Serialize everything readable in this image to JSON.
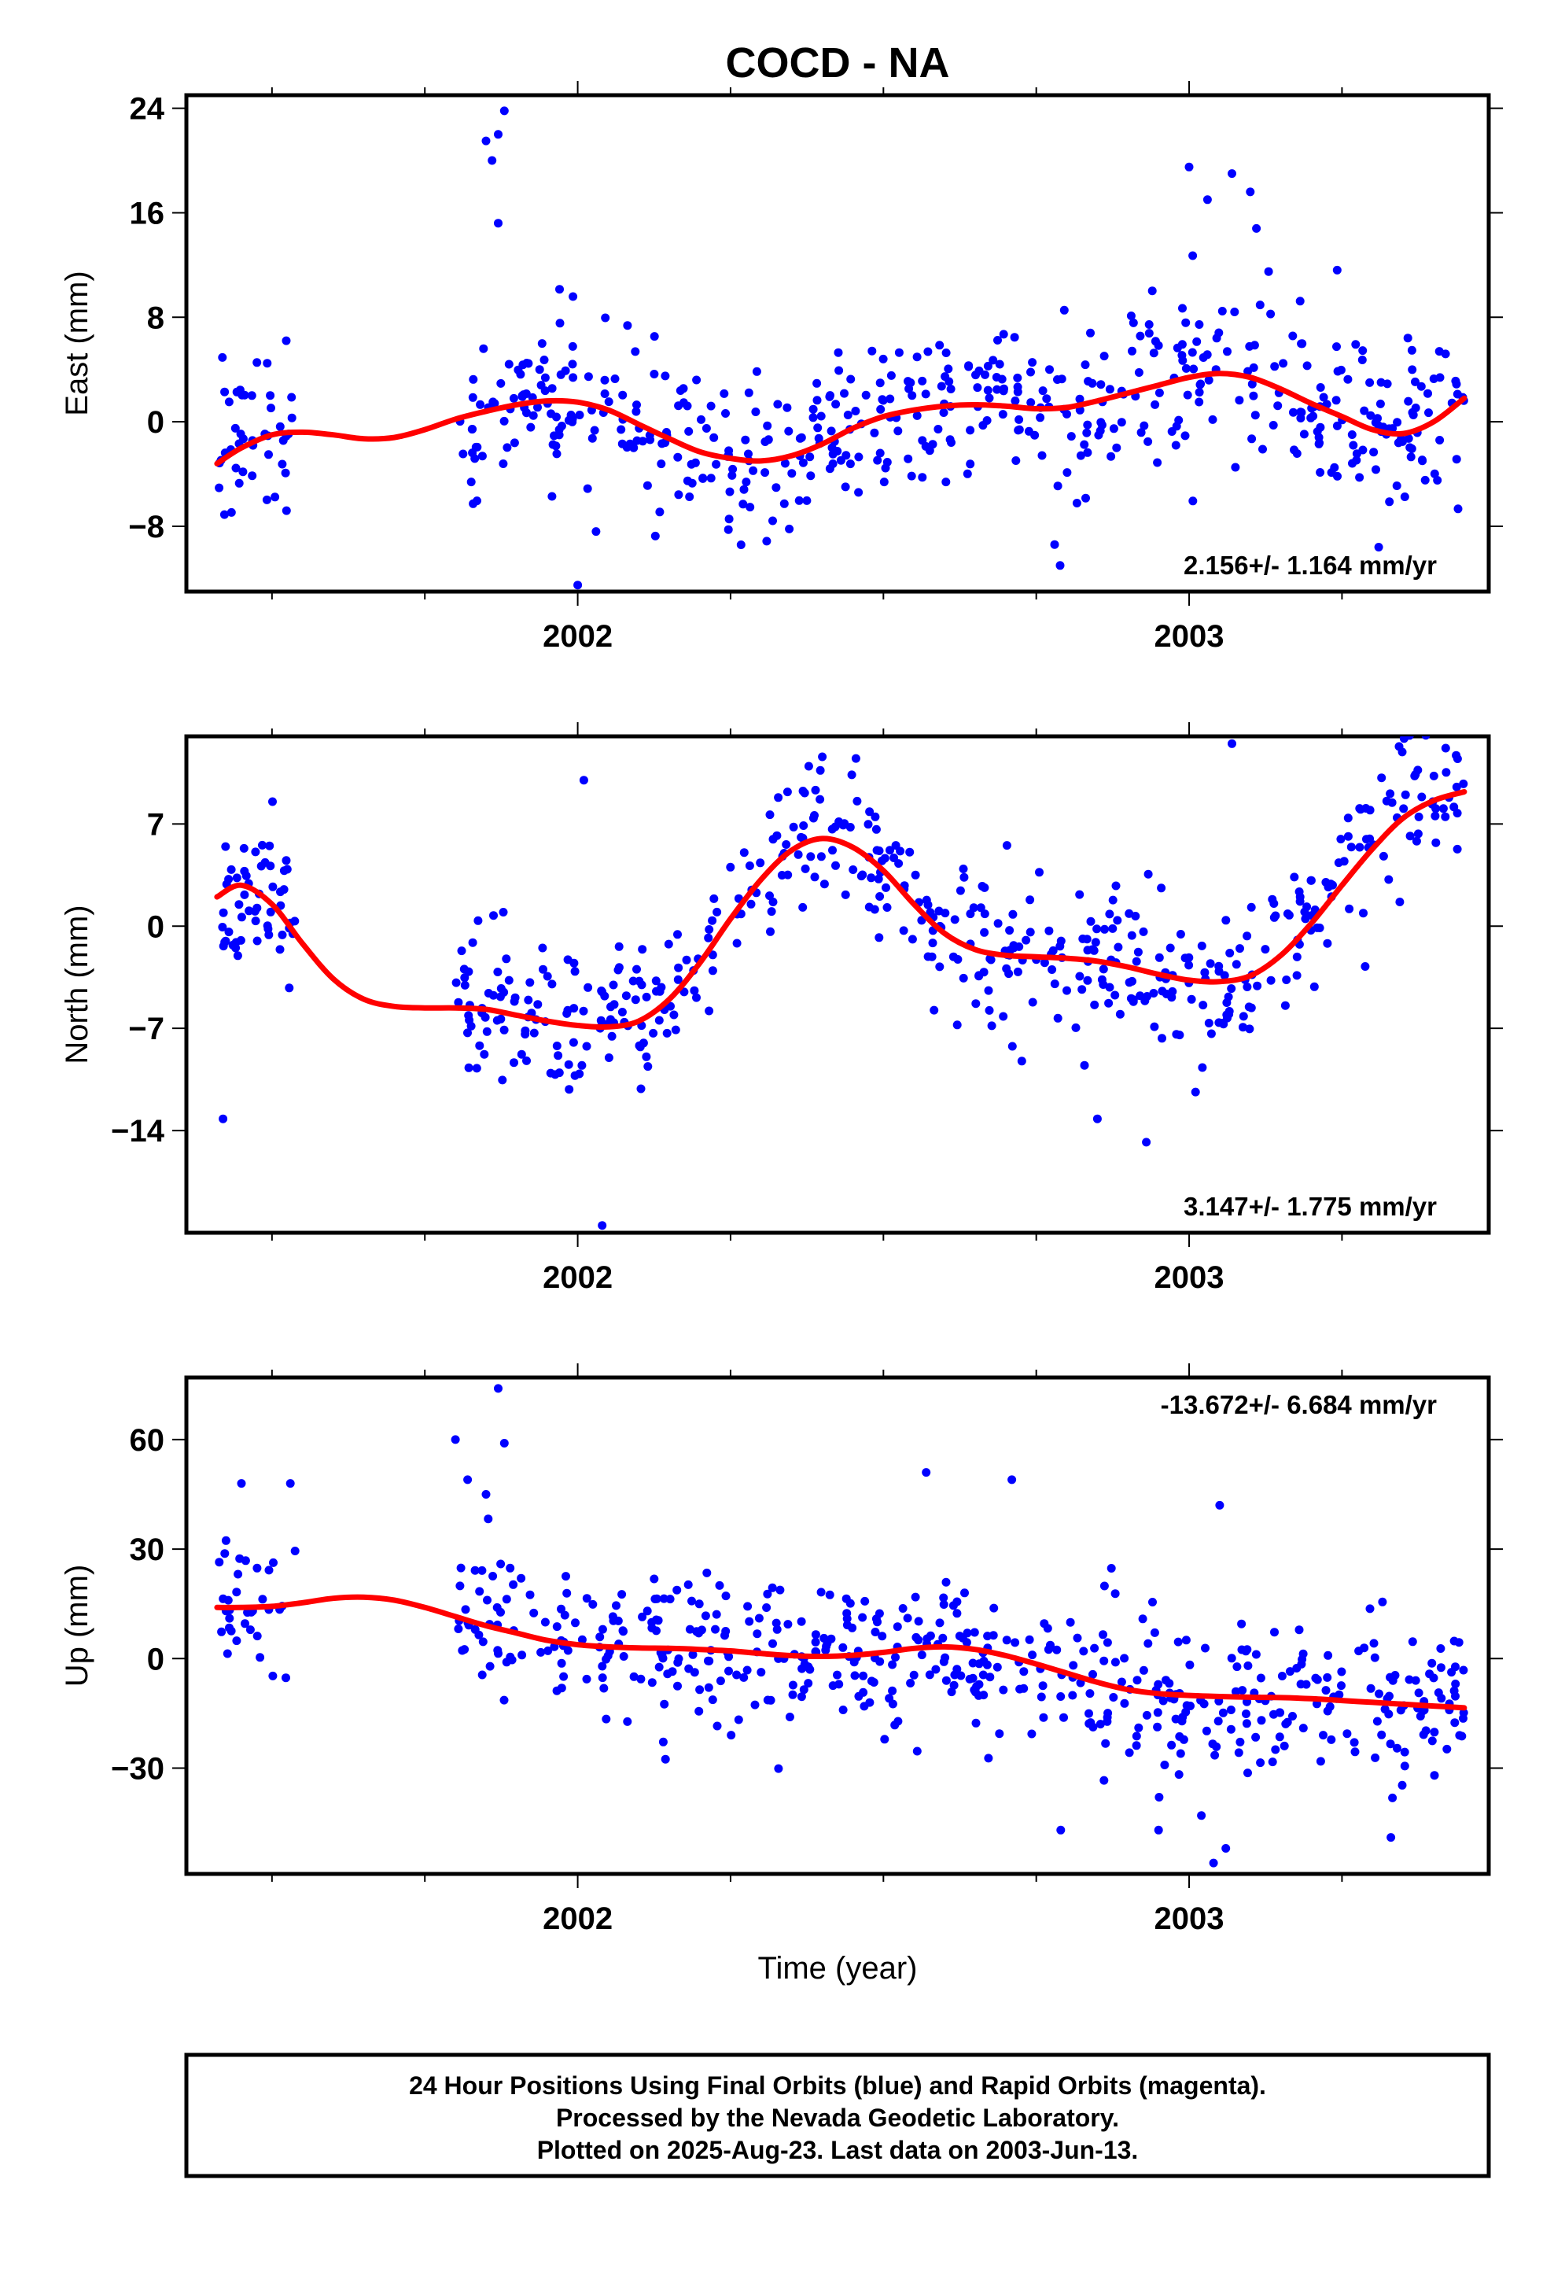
{
  "title": "COCD - NA",
  "xlabel": "Time (year)",
  "footer": {
    "line1": "24 Hour Positions Using Final Orbits (blue) and Rapid Orbits (magenta).",
    "line2": "Processed by the Nevada Geodetic Laboratory.",
    "line3": "Plotted on 2025-Aug-23. Last data on 2003-Jun-13."
  },
  "colors": {
    "points": "#0000ff",
    "fit": "#ff0000",
    "frame": "#000000"
  },
  "chart_data": [
    {
      "type": "scatter",
      "name": "east",
      "ylabel": "East (mm)",
      "rate": "2.156+/- 1.164 mm/yr",
      "rate_position": "bottom-right",
      "xlim": [
        2001.36,
        2003.49
      ],
      "ylim": [
        -13,
        25
      ],
      "yticks": [
        -8,
        0,
        8,
        16,
        24
      ],
      "xticks": [
        2002,
        2003
      ],
      "data_span": [
        2001.41,
        2003.45
      ],
      "gap": [
        2001.54,
        2001.8
      ],
      "model": {
        "trend": -0.4,
        "rate": 2.156,
        "amp": 1.7,
        "freq": 2.6,
        "phase": 0.2
      },
      "spread": 3.2,
      "n_points": 560,
      "seed": 11,
      "fit_x": [
        2001.41,
        2001.45,
        2001.5,
        2001.55,
        2001.6,
        2001.65,
        2001.7,
        2001.75,
        2001.8,
        2001.85,
        2001.9,
        2001.95,
        2002.0,
        2002.05,
        2002.1,
        2002.15,
        2002.2,
        2002.25,
        2002.3,
        2002.35,
        2002.4,
        2002.45,
        2002.5,
        2002.55,
        2002.6,
        2002.65,
        2002.7,
        2002.75,
        2002.8,
        2002.85,
        2002.9,
        2002.95,
        2003.0,
        2003.05,
        2003.1,
        2003.15,
        2003.2,
        2003.25,
        2003.3,
        2003.35,
        2003.4,
        2003.45
      ],
      "fit_y": [
        -3.2,
        -2.0,
        -1.0,
        -0.8,
        -1.0,
        -1.3,
        -1.2,
        -0.6,
        0.2,
        0.8,
        1.3,
        1.6,
        1.5,
        0.9,
        -0.2,
        -1.3,
        -2.3,
        -2.8,
        -3.0,
        -2.6,
        -1.7,
        -0.5,
        0.4,
        0.9,
        1.2,
        1.3,
        1.2,
        1.0,
        1.1,
        1.6,
        2.2,
        2.8,
        3.4,
        3.7,
        3.4,
        2.5,
        1.4,
        0.4,
        -0.6,
        -0.9,
        0.0,
        1.8
      ],
      "outliers": [
        [
          2001.85,
          21.5
        ],
        [
          2001.86,
          20.0
        ],
        [
          2001.87,
          22.0
        ],
        [
          2001.88,
          23.8
        ],
        [
          2001.87,
          15.2
        ],
        [
          2002.0,
          -12.5
        ],
        [
          2003.0,
          19.5
        ],
        [
          2003.03,
          17.0
        ],
        [
          2003.07,
          19.0
        ],
        [
          2003.1,
          17.6
        ],
        [
          2003.11,
          14.8
        ],
        [
          2003.13,
          11.5
        ],
        [
          2002.78,
          -9.4
        ],
        [
          2003.31,
          -9.6
        ],
        [
          2002.03,
          -8.4
        ]
      ]
    },
    {
      "type": "scatter",
      "name": "north",
      "ylabel": "North (mm)",
      "rate": "3.147+/- 1.775 mm/yr",
      "rate_position": "bottom-right",
      "xlim": [
        2001.36,
        2003.49
      ],
      "ylim": [
        -21,
        13
      ],
      "yticks": [
        -14,
        -7,
        0,
        7
      ],
      "xticks": [
        2002,
        2003
      ],
      "data_span": [
        2001.41,
        2003.45
      ],
      "gap": [
        2001.54,
        2001.8
      ],
      "spread": 2.6,
      "n_points": 560,
      "seed": 23,
      "fit_x": [
        2001.41,
        2001.45,
        2001.5,
        2001.55,
        2001.6,
        2001.65,
        2001.7,
        2001.75,
        2001.8,
        2001.85,
        2001.9,
        2001.95,
        2002.0,
        2002.05,
        2002.1,
        2002.15,
        2002.2,
        2002.25,
        2002.3,
        2002.35,
        2002.4,
        2002.45,
        2002.5,
        2002.55,
        2002.6,
        2002.65,
        2002.7,
        2002.75,
        2002.8,
        2002.85,
        2002.9,
        2002.95,
        2003.0,
        2003.05,
        2003.1,
        2003.15,
        2003.2,
        2003.25,
        2003.3,
        2003.35,
        2003.4,
        2003.45
      ],
      "fit_y": [
        2.0,
        2.8,
        1.5,
        -1.2,
        -3.6,
        -5.0,
        -5.5,
        -5.6,
        -5.6,
        -5.7,
        -6.1,
        -6.5,
        -6.8,
        -6.9,
        -6.5,
        -5.0,
        -2.5,
        0.5,
        3.2,
        5.2,
        6.0,
        5.4,
        3.8,
        1.5,
        -0.5,
        -1.6,
        -2.0,
        -2.1,
        -2.2,
        -2.4,
        -2.8,
        -3.3,
        -3.7,
        -3.8,
        -3.4,
        -2.0,
        0.2,
        2.8,
        5.3,
        7.4,
        8.6,
        9.2
      ],
      "outliers": [
        [
          2001.42,
          -13.2
        ],
        [
          2002.04,
          -20.5
        ],
        [
          2002.01,
          10.0
        ],
        [
          2003.07,
          12.5
        ],
        [
          2002.85,
          -13.2
        ],
        [
          2002.93,
          -14.8
        ],
        [
          2002.4,
          11.6
        ]
      ]
    },
    {
      "type": "scatter",
      "name": "up",
      "ylabel": "Up (mm)",
      "rate": "-13.672+/- 6.684 mm/yr",
      "rate_position": "top-right",
      "xlim": [
        2001.36,
        2003.49
      ],
      "ylim": [
        -59,
        77
      ],
      "yticks": [
        -30,
        0,
        30,
        60
      ],
      "xticks": [
        2002,
        2003
      ],
      "data_span": [
        2001.41,
        2003.45
      ],
      "gap": [
        2001.54,
        2001.8
      ],
      "spread": 10.5,
      "n_points": 560,
      "seed": 37,
      "fit_x": [
        2001.41,
        2001.45,
        2001.5,
        2001.55,
        2001.6,
        2001.65,
        2001.7,
        2001.75,
        2001.8,
        2001.85,
        2001.9,
        2001.95,
        2002.0,
        2002.05,
        2002.1,
        2002.15,
        2002.2,
        2002.25,
        2002.3,
        2002.35,
        2002.4,
        2002.45,
        2002.5,
        2002.55,
        2002.6,
        2002.65,
        2002.7,
        2002.75,
        2002.8,
        2002.85,
        2002.9,
        2002.95,
        2003.0,
        2003.05,
        2003.1,
        2003.15,
        2003.2,
        2003.25,
        2003.3,
        2003.35,
        2003.4,
        2003.45
      ],
      "fit_y": [
        14.0,
        14.0,
        14.3,
        15.3,
        16.5,
        16.8,
        16.0,
        14.0,
        11.5,
        9.0,
        7.0,
        5.0,
        3.8,
        3.2,
        2.9,
        2.8,
        2.5,
        2.1,
        1.4,
        0.8,
        0.6,
        0.9,
        1.7,
        2.8,
        3.2,
        2.5,
        0.8,
        -1.5,
        -4.0,
        -6.5,
        -8.5,
        -9.6,
        -10.1,
        -10.4,
        -10.6,
        -10.7,
        -11.0,
        -11.5,
        -12.0,
        -12.5,
        -13.0,
        -13.5
      ],
      "outliers": [
        [
          2001.8,
          60.0
        ],
        [
          2001.82,
          49.0
        ],
        [
          2001.85,
          45.0
        ],
        [
          2001.87,
          74.0
        ],
        [
          2001.88,
          59.0
        ],
        [
          2001.45,
          48.0
        ],
        [
          2001.53,
          48.0
        ],
        [
          2002.57,
          51.0
        ],
        [
          2002.71,
          49.0
        ],
        [
          2003.05,
          42.0
        ],
        [
          2003.04,
          -56.0
        ],
        [
          2002.79,
          -47.0
        ],
        [
          2003.06,
          -52.0
        ],
        [
          2003.33,
          -49.0
        ],
        [
          2002.95,
          -47.0
        ],
        [
          2003.02,
          -43.0
        ]
      ]
    }
  ]
}
